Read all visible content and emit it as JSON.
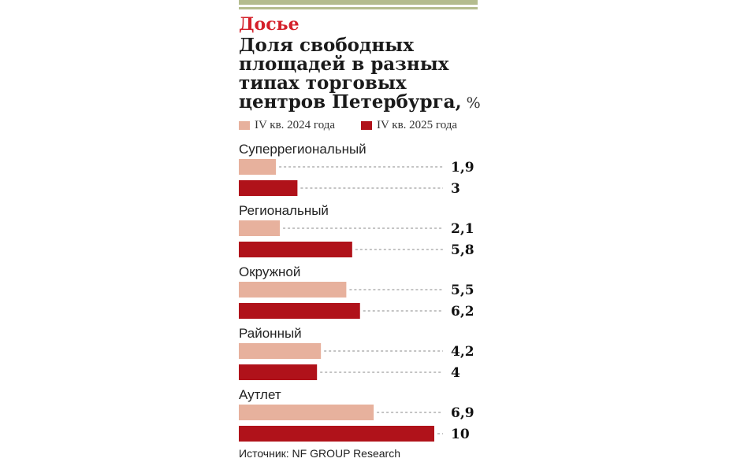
{
  "kicker": "Досье",
  "title_lines": [
    "Доля свободных",
    "площадей в разных",
    "типах торговых",
    "центров Петербурга,"
  ],
  "unit": "%",
  "source": "Источник: NF GROUP Research",
  "colors": {
    "series1": "#e7b19d",
    "series2": "#b0121a",
    "stripe": "#b4bc8e",
    "kicker": "#d4202a"
  },
  "chart_data": {
    "type": "bar",
    "orientation": "horizontal",
    "title": "Доля свободных площадей в разных типах торговых центров Петербурга, %",
    "categories": [
      "Суперрегиональный",
      "Региональный",
      "Окружной",
      "Районный",
      "Аутлет"
    ],
    "series": [
      {
        "name": "IV кв. 2024 года",
        "values": [
          1.9,
          2.1,
          5.5,
          4.2,
          6.9
        ],
        "labels": [
          "1,9",
          "2,1",
          "5,5",
          "4,2",
          "6,9"
        ]
      },
      {
        "name": "IV кв. 2025 года",
        "values": [
          3,
          5.8,
          6.2,
          4,
          10
        ],
        "labels": [
          "3",
          "5,8",
          "6,2",
          "4",
          "10"
        ]
      }
    ],
    "xlim": [
      0,
      10
    ],
    "legend": "top",
    "grid": false
  }
}
